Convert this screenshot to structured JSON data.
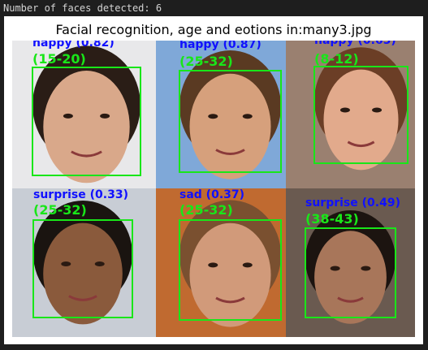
{
  "header": {
    "text": "Number of faces detected: 6"
  },
  "figure": {
    "title": "Facial recognition, age and eotions in:many3.jpg"
  },
  "faces": [
    {
      "emotion": "happy (0.82)",
      "age": "(15-20)"
    },
    {
      "emotion": "happy (0.87)",
      "age": "(25-32)"
    },
    {
      "emotion": "happy (0.65)",
      "age": "(8-12)"
    },
    {
      "emotion": "surprise (0.33)",
      "age": "(25-32)"
    },
    {
      "emotion": "sad (0.37)",
      "age": "(25-32)"
    },
    {
      "emotion": "surprise (0.49)",
      "age": "(38-43)"
    }
  ]
}
